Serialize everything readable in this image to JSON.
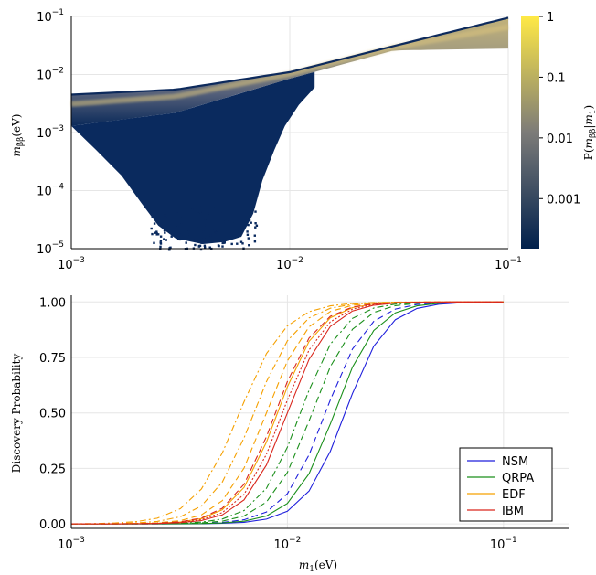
{
  "chart_data": [
    {
      "type": "heatmap",
      "xlabel": "",
      "ylabel": "m_{ββ}(eV)",
      "xscale": "log",
      "yscale": "log",
      "xlim": [
        0.001,
        0.1
      ],
      "ylim": [
        1e-05,
        0.1
      ],
      "x_ticks": [
        {
          "base": "10",
          "exp": "−3"
        },
        {
          "base": "10",
          "exp": "−2"
        },
        {
          "base": "10",
          "exp": "−1"
        }
      ],
      "y_ticks": [
        {
          "base": "10",
          "exp": "−5"
        },
        {
          "base": "10",
          "exp": "−4"
        },
        {
          "base": "10",
          "exp": "−3"
        },
        {
          "base": "10",
          "exp": "−2"
        },
        {
          "base": "10",
          "exp": "−1"
        }
      ],
      "colorbar": {
        "label": "P(m_{ββ}|m_1)",
        "scale": "log",
        "ticks": [
          "1",
          "0.1",
          "0.01",
          "0.001"
        ],
        "colors": [
          "#00204c",
          "#7c7b78",
          "#ffe945"
        ]
      },
      "band": {
        "upper_edge": [
          [
            0.001,
            0.0045
          ],
          [
            0.003,
            0.0055
          ],
          [
            0.01,
            0.011
          ],
          [
            0.03,
            0.031
          ],
          [
            0.1,
            0.095
          ]
        ],
        "lower_edge_top_branch": [
          [
            0.001,
            0.0013
          ],
          [
            0.003,
            0.0022
          ],
          [
            0.01,
            0.0085
          ],
          [
            0.03,
            0.026
          ],
          [
            0.1,
            0.028
          ]
        ],
        "funnel_bottom_range": [
          0.0025,
          0.0075
        ],
        "funnel_minimum": 1e-05
      },
      "grid": true
    },
    {
      "type": "line",
      "xlabel": "m_1(eV)",
      "ylabel": "Discovery Probability",
      "xscale": "log",
      "xlim": [
        0.001,
        0.2
      ],
      "ylim": [
        -0.02,
        1.03
      ],
      "x_ticks": [
        {
          "base": "10",
          "exp": "−3"
        },
        {
          "base": "10",
          "exp": "−2"
        },
        {
          "base": "10",
          "exp": "−1"
        }
      ],
      "y_ticks": [
        "0.00",
        "0.25",
        "0.50",
        "0.75",
        "1.00"
      ],
      "legend_position": "bottom-right",
      "grid": true,
      "series": [
        {
          "name": "NSM",
          "color": "#1f1fdc",
          "dash": "solid",
          "mid": 0.0185,
          "width": 0.4
        },
        {
          "name": "",
          "color": "#1f1fdc",
          "dash": "dashed",
          "mid": 0.015,
          "width": 0.4
        },
        {
          "name": "QRPA",
          "color": "#1a8f1a",
          "dash": "solid",
          "mid": 0.0165,
          "width": 0.4
        },
        {
          "name": "",
          "color": "#1a8f1a",
          "dash": "dashed",
          "mid": 0.013,
          "width": 0.4
        },
        {
          "name": "",
          "color": "#1a8f1a",
          "dash": "dashdot",
          "mid": 0.0115,
          "width": 0.4
        },
        {
          "name": "EDF",
          "color": "#f5a000",
          "dash": "solid",
          "mid": 0.009,
          "width": 0.4
        },
        {
          "name": "",
          "color": "#f5a000",
          "dash": "dashed",
          "mid": 0.008,
          "width": 0.4
        },
        {
          "name": "",
          "color": "#f5a000",
          "dash": "dashdot",
          "mid": 0.007,
          "width": 0.42
        },
        {
          "name": "",
          "color": "#f5a000",
          "dash": "dashdot",
          "mid": 0.006,
          "width": 0.44
        },
        {
          "name": "IBM",
          "color": "#d9261c",
          "dash": "solid",
          "mid": 0.01,
          "width": 0.4
        },
        {
          "name": "",
          "color": "#d9261c",
          "dash": "dashed",
          "mid": 0.0088,
          "width": 0.4
        },
        {
          "name": "",
          "color": "#d9261c",
          "dash": "dotted",
          "mid": 0.0095,
          "width": 0.4
        }
      ],
      "x": [
        0.001,
        0.0013,
        0.0016,
        0.002,
        0.0025,
        0.0032,
        0.004,
        0.005,
        0.0063,
        0.008,
        0.01,
        0.0126,
        0.0158,
        0.02,
        0.0251,
        0.0316,
        0.0398,
        0.0501,
        0.0631,
        0.0794,
        0.1
      ]
    }
  ]
}
